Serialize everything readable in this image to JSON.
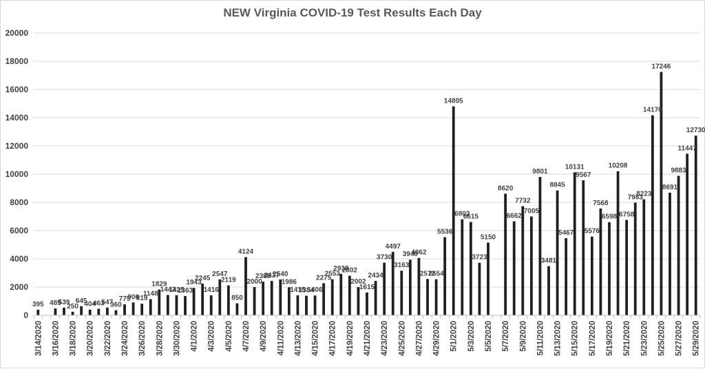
{
  "chart_data": {
    "type": "bar",
    "title": "NEW Virginia COVID-19 Test Results Each Day",
    "xlabel": "",
    "ylabel": "",
    "ylim": [
      0,
      20000
    ],
    "yticks": [
      0,
      2000,
      4000,
      6000,
      8000,
      10000,
      12000,
      14000,
      16000,
      18000,
      20000
    ],
    "grid": true,
    "legend": "none",
    "bar_color": "#1f1f1f",
    "categories": [
      "3/14/2020",
      "3/15/2020",
      "3/16/2020",
      "3/17/2020",
      "3/18/2020",
      "3/19/2020",
      "3/20/2020",
      "3/21/2020",
      "3/22/2020",
      "3/23/2020",
      "3/24/2020",
      "3/25/2020",
      "3/26/2020",
      "3/27/2020",
      "3/28/2020",
      "3/29/2020",
      "3/30/2020",
      "3/31/2020",
      "4/1/2020",
      "4/2/2020",
      "4/3/2020",
      "4/4/2020",
      "4/5/2020",
      "4/6/2020",
      "4/7/2020",
      "4/8/2020",
      "4/9/2020",
      "4/10/2020",
      "4/11/2020",
      "4/12/2020",
      "4/13/2020",
      "4/14/2020",
      "4/15/2020",
      "4/16/2020",
      "4/17/2020",
      "4/18/2020",
      "4/19/2020",
      "4/20/2020",
      "4/21/2020",
      "4/22/2020",
      "4/23/2020",
      "4/24/2020",
      "4/25/2020",
      "4/26/2020",
      "4/27/2020",
      "4/28/2020",
      "4/29/2020",
      "4/30/2020",
      "5/1/2020",
      "5/2/2020",
      "5/3/2020",
      "5/4/2020",
      "5/5/2020",
      "5/6/2020",
      "5/7/2020",
      "5/8/2020",
      "5/9/2020",
      "5/10/2020",
      "5/11/2020",
      "5/12/2020",
      "5/13/2020",
      "5/14/2020",
      "5/15/2020",
      "5/16/2020",
      "5/17/2020",
      "5/18/2020",
      "5/19/2020",
      "5/20/2020",
      "5/21/2020",
      "5/22/2020",
      "5/23/2020",
      "5/24/2020",
      "5/25/2020",
      "5/26/2020",
      "5/27/2020",
      "5/28/2020",
      "5/29/2020"
    ],
    "tick_labels": [
      "3/14/2020",
      "3/16/2020",
      "3/18/2020",
      "3/20/2020",
      "3/22/2020",
      "3/24/2020",
      "3/26/2020",
      "3/28/2020",
      "3/30/2020",
      "4/1/2020",
      "4/3/2020",
      "4/5/2020",
      "4/7/2020",
      "4/9/2020",
      "4/11/2020",
      "4/13/2020",
      "4/15/2020",
      "4/17/2020",
      "4/19/2020",
      "4/21/2020",
      "4/23/2020",
      "4/25/2020",
      "4/27/2020",
      "4/29/2020",
      "5/1/2020",
      "5/3/2020",
      "5/5/2020",
      "5/7/2020",
      "5/9/2020",
      "5/11/2020",
      "5/13/2020",
      "5/15/2020",
      "5/17/2020",
      "5/19/2020",
      "5/21/2020",
      "5/23/2020",
      "5/25/2020",
      "5/27/2020",
      "5/29/2020"
    ],
    "values": [
      395,
      null,
      485,
      539,
      250,
      645,
      404,
      463,
      547,
      360,
      775,
      906,
      819,
      1148,
      1829,
      1443,
      1425,
      1363,
      1943,
      2245,
      1416,
      2547,
      2119,
      850,
      4124,
      2000,
      2386,
      2437,
      2540,
      1986,
      1415,
      1384,
      1406,
      2275,
      2553,
      2938,
      2802,
      2002,
      1615,
      2434,
      3730,
      4497,
      3163,
      3940,
      4062,
      2572,
      2554,
      5536,
      14805,
      6802,
      6615,
      3723,
      5150,
      null,
      8620,
      6662,
      7732,
      7005,
      9801,
      3481,
      8845,
      5467,
      10131,
      9567,
      5576,
      7568,
      6598,
      10208,
      6758,
      7983,
      8223,
      14170,
      17246,
      8691,
      9883,
      11447,
      12730
    ],
    "data_labels": [
      "395",
      "",
      "485",
      "539",
      "250",
      "645",
      "404",
      "463",
      "547",
      "360",
      "775",
      "906",
      "819",
      "1148",
      "1829",
      "1443",
      "1425",
      "1363",
      "1943",
      "2245",
      "1416",
      "2547",
      "2119",
      "850",
      "4124",
      "2000",
      "2386",
      "2437",
      "2540",
      "1986",
      "1415",
      "1384",
      "1406",
      "2275",
      "2553",
      "2938",
      "2802",
      "2002",
      "1615",
      "2434",
      "3730",
      "4497",
      "3163",
      "3940",
      "4062",
      "2572",
      "2554",
      "5536",
      "14805",
      "6802",
      "6615",
      "3723",
      "5150",
      "",
      "8620",
      "6662",
      "7732",
      "7005",
      "9801",
      "3481",
      "8845",
      "5467",
      "10131",
      "9567",
      "5576",
      "7568",
      "6598",
      "10208",
      "6758",
      "7983",
      "8223",
      "14170",
      "17246",
      "8691",
      "9883",
      "11447",
      "12730"
    ]
  }
}
